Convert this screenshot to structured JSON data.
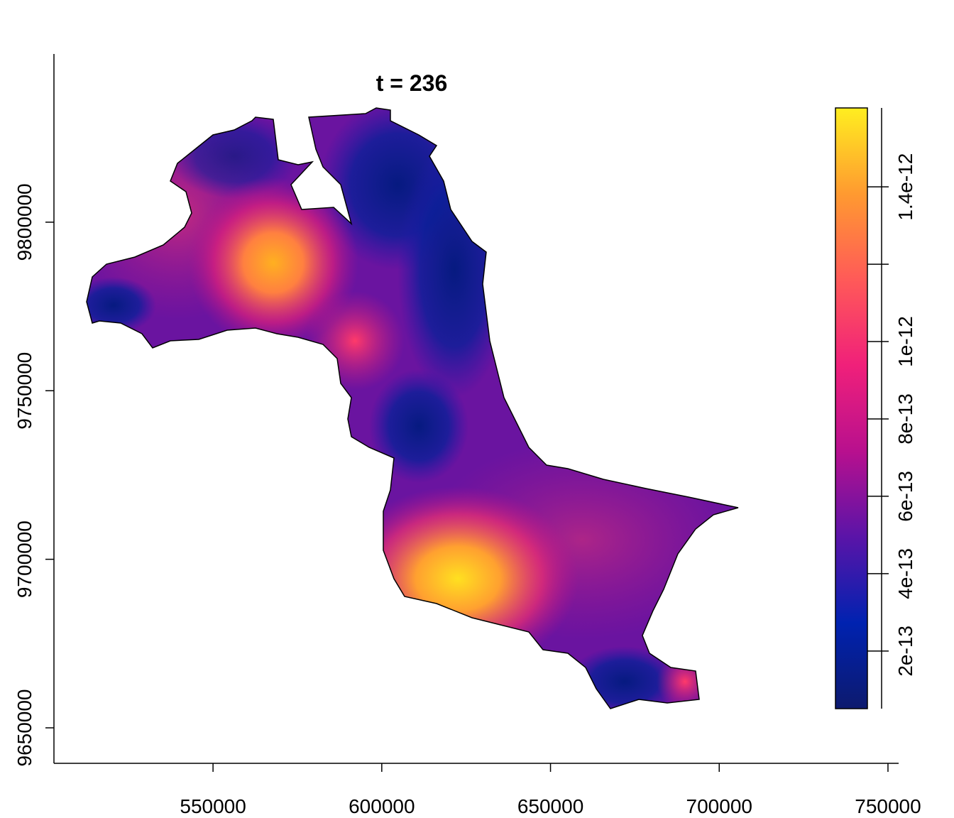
{
  "map": {
    "title": "t = 236",
    "x_axis": {
      "lim": [
        502860,
        753160
      ],
      "ticks": [
        550000,
        600000,
        650000,
        700000,
        750000
      ]
    },
    "y_axis": {
      "lim": [
        9639470,
        9849900
      ],
      "ticks": [
        9650000,
        9700000,
        9750000,
        9800000
      ]
    },
    "legend": {
      "lim": [
        5.1e-14,
        1.604e-12
      ],
      "ticks": [
        2e-13,
        4e-13,
        6e-13,
        8e-13,
        1e-12,
        {
          "value": 1.2e-12,
          "label": null
        },
        1.4e-12
      ],
      "colors": [
        "#0d1a6e",
        "#0022b0",
        "#5a14a8",
        "#b8108e",
        "#f0207a",
        "#ff5a58",
        "#ff9a30",
        "#ffee20"
      ]
    }
  }
}
